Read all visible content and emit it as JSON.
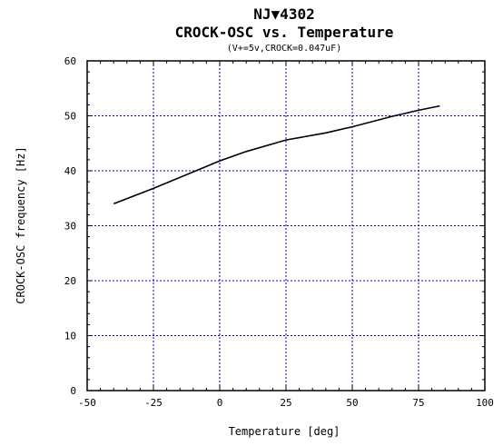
{
  "chart_data": {
    "type": "line",
    "title_line1": "NJ▼4302",
    "title_line2": "CROCK-OSC vs. Temperature",
    "subtitle": "(V+=5v,CROCK=0.047uF)",
    "xlabel": "Temperature [deg]",
    "ylabel": "CROCK-OSC frequency [Hz]",
    "xlim": [
      -50,
      100
    ],
    "ylim": [
      0,
      60
    ],
    "xticks": [
      -50,
      -25,
      0,
      25,
      50,
      75,
      100
    ],
    "yticks": [
      0,
      10,
      20,
      30,
      40,
      50,
      60
    ],
    "grid": true,
    "series": [
      {
        "x": [
          -40,
          -25,
          -10,
          0,
          10,
          25,
          40,
          50,
          65,
          75,
          83
        ],
        "y": [
          34.0,
          36.8,
          39.8,
          41.8,
          43.5,
          45.6,
          46.9,
          48.0,
          49.9,
          51.0,
          51.8
        ]
      }
    ],
    "colors": {
      "line": "#000000",
      "grid": "#0000cc",
      "frame": "#000000"
    }
  }
}
